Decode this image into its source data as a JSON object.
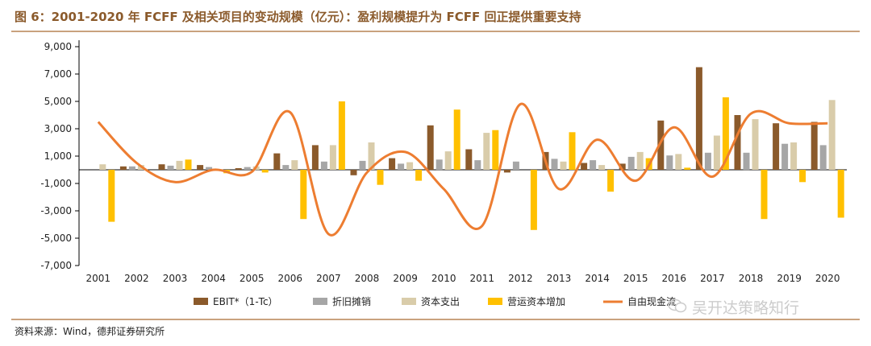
{
  "header": {
    "title": "图 6：2001-2020 年 FCFF 及相关项目的变动规模（亿元）：盈利规模提升为 FCFF 回正提供重要支持"
  },
  "footer": {
    "source": "资料来源：Wind，德邦证券研究所",
    "watermark": "吴开达策略知行"
  },
  "colors": {
    "ebit": "#8b5a2b",
    "depreciation": "#a6a6a6",
    "capex": "#d9ccaa",
    "working_capital": "#ffc000",
    "fcff": "#ed7d31",
    "title": "#8b5a2b"
  },
  "chart_data": {
    "type": "bar",
    "title": "2001-2020 年 FCFF 及相关项目的变动规模（亿元）",
    "xlabel": "",
    "ylabel": "",
    "ylim": [
      -7000,
      9000
    ],
    "yticks": [
      -7000,
      -5000,
      -3000,
      -1000,
      1000,
      3000,
      5000,
      7000,
      9000
    ],
    "ytick_labels": [
      "-7,000",
      "-5,000",
      "-3,000",
      "-1,000",
      "1,000",
      "3,000",
      "5,000",
      "7,000",
      "9,000"
    ],
    "categories": [
      "2001",
      "2002",
      "2003",
      "2004",
      "2005",
      "2006",
      "2007",
      "2008",
      "2009",
      "2010",
      "2011",
      "2012",
      "2013",
      "2014",
      "2015",
      "2016",
      "2017",
      "2018",
      "2019",
      "2020"
    ],
    "series": [
      {
        "name": "EBIT*（1-Tc）",
        "kind": "bar",
        "color_key": "ebit",
        "values": [
          0,
          250,
          400,
          350,
          120,
          1200,
          1800,
          -400,
          850,
          3250,
          1500,
          -200,
          1300,
          500,
          450,
          3600,
          7500,
          4000,
          3400,
          3500
        ]
      },
      {
        "name": "折旧摊销",
        "kind": "bar",
        "color_key": "depreciation",
        "values": [
          0,
          250,
          300,
          200,
          200,
          350,
          600,
          650,
          450,
          750,
          700,
          600,
          800,
          700,
          950,
          1050,
          1250,
          1250,
          1900,
          1800
        ]
      },
      {
        "name": "资本支出",
        "kind": "bar",
        "color_key": "capex",
        "values": [
          400,
          350,
          650,
          0,
          250,
          700,
          1800,
          2000,
          550,
          1350,
          2700,
          0,
          600,
          350,
          1300,
          1150,
          2500,
          3700,
          2000,
          5100
        ]
      },
      {
        "name": "营运资本增加",
        "kind": "bar",
        "color_key": "working_capital",
        "values": [
          -3800,
          0,
          750,
          -250,
          -200,
          -3600,
          5000,
          -1100,
          -800,
          4400,
          2900,
          -4400,
          2750,
          -1600,
          850,
          150,
          5300,
          -3600,
          -900,
          -3500
        ]
      },
      {
        "name": "自由现金流",
        "kind": "line",
        "color_key": "fcff",
        "values": [
          3500,
          500,
          -900,
          0,
          -150,
          4200,
          -4700,
          -200,
          1300,
          -1400,
          -4100,
          4800,
          -1400,
          2200,
          -800,
          3100,
          -500,
          4100,
          3400,
          3400
        ]
      }
    ],
    "legend_position": "bottom-center",
    "grid": false
  }
}
